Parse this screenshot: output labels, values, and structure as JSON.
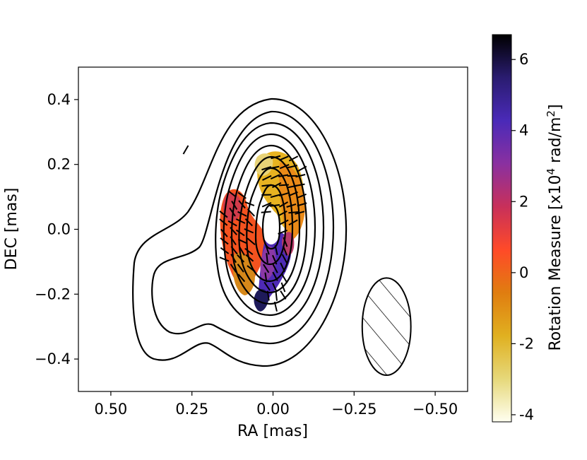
{
  "chart_data": {
    "type": "heatmap",
    "title": "",
    "xlabel": "RA [mas]",
    "ylabel": "DEC [mas]",
    "xlim": [
      0.6,
      -0.6
    ],
    "ylim": [
      -0.5,
      0.5
    ],
    "x_ticks": [
      0.5,
      0.25,
      0.0,
      -0.25,
      -0.5
    ],
    "x_tick_labels": [
      "0.50",
      "0.25",
      "0.00",
      "−0.25",
      "−0.50"
    ],
    "y_ticks": [
      0.4,
      0.2,
      0.0,
      -0.2,
      -0.4
    ],
    "y_tick_labels": [
      "0.4",
      "0.2",
      "0.0",
      "−0.2",
      "−0.4"
    ],
    "colorbar": {
      "label": "Rotation Measure [x10",
      "label_exp": "4",
      "label_unit": " rad/m",
      "label_exp2": "2",
      "label_close": "]",
      "min": -4.2,
      "max": 6.7,
      "ticks": [
        -4,
        -2,
        0,
        2,
        4,
        6
      ],
      "tick_labels": [
        "-4",
        "-2",
        "0",
        "2",
        "4",
        "6"
      ],
      "colormap": [
        "#fffff0",
        "#e6d87a",
        "#e0b020",
        "#e07d10",
        "#ff4a28",
        "#c8305a",
        "#8a30a0",
        "#4a2ab8",
        "#2a1c70",
        "#000000"
      ]
    },
    "contour_levels": 9,
    "beam": {
      "center_ra": -0.35,
      "center_dec": -0.3,
      "width_ra": 0.15,
      "height_dec": 0.3
    }
  }
}
